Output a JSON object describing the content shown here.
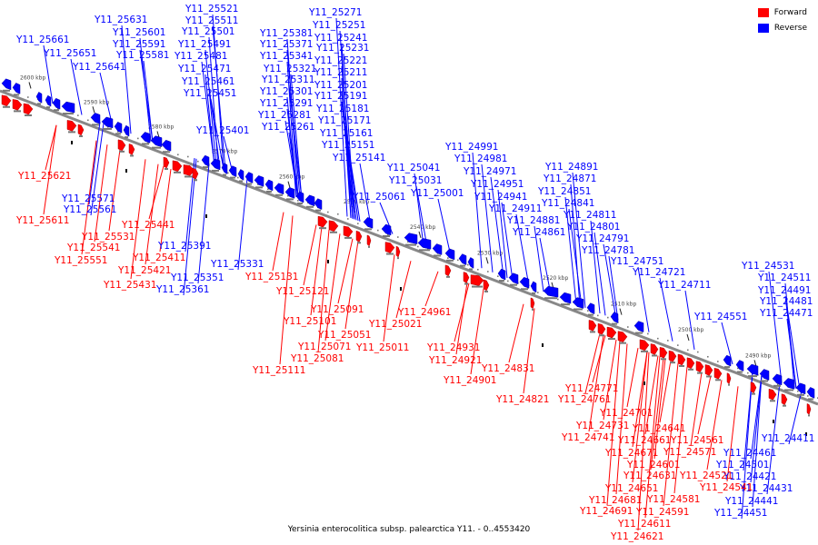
{
  "caption": "Yersinia enterocolitica subsp. palearctica Y11. - 0..4553420",
  "legend": [
    {
      "label": "Forward",
      "color": "#ff0000"
    },
    {
      "label": "Reverse",
      "color": "#0000ff"
    }
  ],
  "colors": {
    "forward": "#ff0000",
    "reverse": "#0000ff",
    "backbone": "#888888"
  },
  "ticks": [
    "2600 kbp",
    "2590 kbp",
    "2580 kbp",
    "2570 kbp",
    "2560 kbp",
    "2550 kbp",
    "2540 kbp",
    "2530 kbp",
    "2520 kbp",
    "2510 kbp",
    "2500 kbp",
    "2490 kbp"
  ],
  "reverse_labels": [
    "Y11_25661",
    "Y11_25651",
    "Y11_25641",
    "Y11_25631",
    "Y11_25601",
    "Y11_25591",
    "Y11_25581",
    "Y11_25521",
    "Y11_25511",
    "Y11_25501",
    "Y11_25491",
    "Y11_25481",
    "Y11_25471",
    "Y11_25461",
    "Y11_25451",
    "Y11_25401",
    "Y11_25381",
    "Y11_25371",
    "Y11_25341",
    "Y11_25321",
    "Y11_25311",
    "Y11_25301",
    "Y11_25291",
    "Y11_25281",
    "Y11_25261",
    "Y11_25271",
    "Y11_25251",
    "Y11_25241",
    "Y11_25231",
    "Y11_25221",
    "Y11_25211",
    "Y11_25201",
    "Y11_25191",
    "Y11_25181",
    "Y11_25171",
    "Y11_25161",
    "Y11_25151",
    "Y11_25141",
    "Y11_25061",
    "Y11_25041",
    "Y11_25031",
    "Y11_25001",
    "Y11_24991",
    "Y11_24981",
    "Y11_24971",
    "Y11_24951",
    "Y11_24941",
    "Y11_24911",
    "Y11_24881",
    "Y11_24861",
    "Y11_24891",
    "Y11_24871",
    "Y11_24851",
    "Y11_24841",
    "Y11_24811",
    "Y11_24801",
    "Y11_24791",
    "Y11_24781",
    "Y11_24751",
    "Y11_24721",
    "Y11_24711",
    "Y11_24551",
    "Y11_24531",
    "Y11_24511",
    "Y11_24491",
    "Y11_24481",
    "Y11_24471",
    "Y11_25571",
    "Y11_25561",
    "Y11_25391",
    "Y11_25351",
    "Y11_25361",
    "Y11_25331",
    "Y11_24461",
    "Y11_24411",
    "Y11_24501",
    "Y11_24421",
    "Y11_24431",
    "Y11_24441",
    "Y11_24451"
  ],
  "forward_labels": [
    "Y11_25621",
    "Y11_25611",
    "Y11_25441",
    "Y11_25531",
    "Y11_25541",
    "Y11_25551",
    "Y11_25411",
    "Y11_25421",
    "Y11_25431",
    "Y11_25131",
    "Y11_25121",
    "Y11_25091",
    "Y11_25101",
    "Y11_25051",
    "Y11_25071",
    "Y11_25081",
    "Y11_25111",
    "Y11_25021",
    "Y11_25011",
    "Y11_24961",
    "Y11_24931",
    "Y11_24921",
    "Y11_24901",
    "Y11_24831",
    "Y11_24821",
    "Y11_24771",
    "Y11_24761",
    "Y11_24701",
    "Y11_24731",
    "Y11_24741",
    "Y11_24641",
    "Y11_24661",
    "Y11_24671",
    "Y11_24601",
    "Y11_24631",
    "Y11_24651",
    "Y11_24571",
    "Y11_24561",
    "Y11_24521",
    "Y11_24541",
    "Y11_24581",
    "Y11_24591",
    "Y11_24681",
    "Y11_24691",
    "Y11_24611",
    "Y11_24621"
  ]
}
